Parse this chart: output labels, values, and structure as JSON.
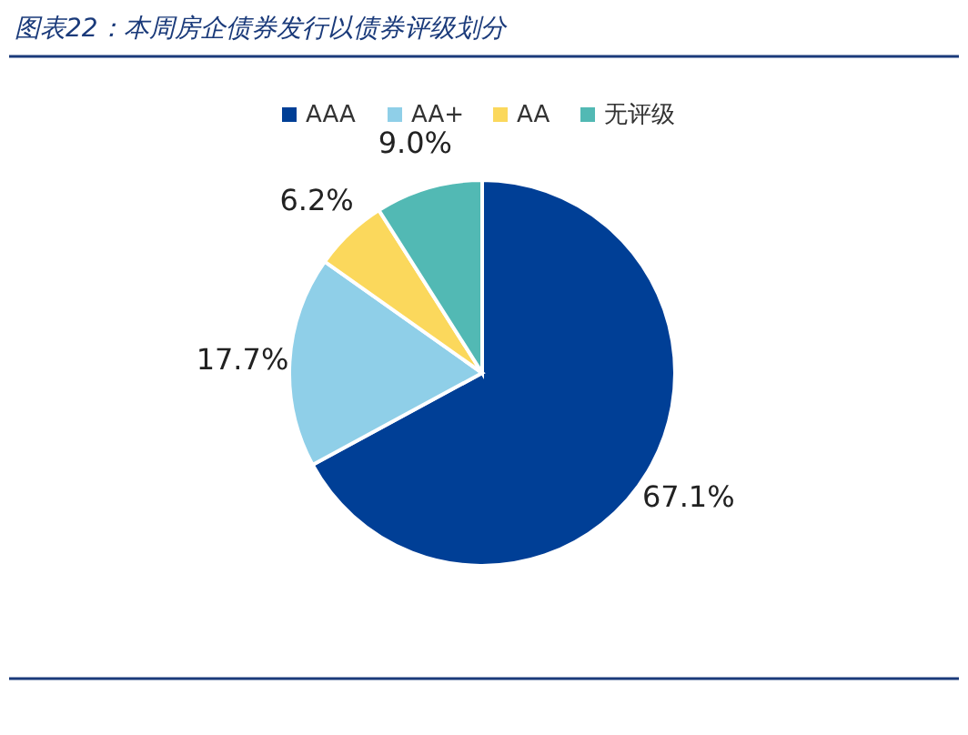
{
  "chart_data": {
    "type": "pie",
    "title": "图表22：本周房企债券发行以债券评级划分",
    "categories": [
      "AAA",
      "AA+",
      "AA",
      "无评级"
    ],
    "values": [
      67.1,
      17.7,
      6.2,
      9.0
    ],
    "value_labels": [
      "67.1%",
      "17.7%",
      "6.2%",
      "9.0%"
    ],
    "colors": [
      "#003f96",
      "#8fcfe8",
      "#fbd85c",
      "#52b9b4"
    ],
    "legend": "top"
  }
}
